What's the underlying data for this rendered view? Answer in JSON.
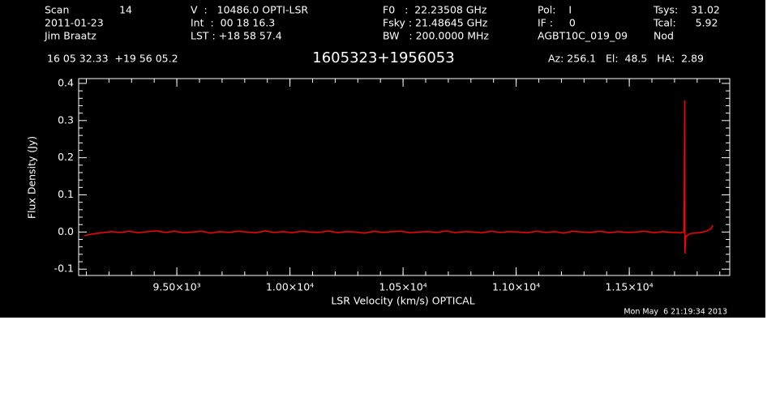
{
  "header": {
    "scan_label": "Scan",
    "scan": "14",
    "date": "2011-01-23",
    "observer": "Jim Braatz",
    "velocity": "V  :   10486.0 OPTI-LSR",
    "int": "Int  :  00 18 16.3",
    "lst": "LST : +18 58 57.4",
    "f0": "F0   :  22.23508 GHz",
    "fsky": "Fsky : 21.48645 GHz",
    "bw": "BW   : 200.0000 MHz",
    "pol": "Pol:    I",
    "if": "IF :     0",
    "project": "AGBT10C_019_09",
    "tsys": "Tsys:    31.02",
    "tcal": "Tcal:      5.92",
    "procedure": "Nod",
    "coordinates": "16 05 32.33  +19 56 05.2",
    "azel": "Az: 256.1   El:  48.5   HA:  2.89"
  },
  "footer": {
    "timestamp": "Mon May  6 21:19:34 2013"
  },
  "chart_data": {
    "type": "line",
    "title": "1605323+1956053",
    "x_label": "LSR Velocity (km/s) OPTICAL",
    "y_label": "Flux Density (Jy)",
    "xlim": [
      9066,
      11944
    ],
    "ylim": [
      -0.117,
      0.413
    ],
    "xticks": [
      {
        "value": 9500,
        "label": "9.50×10³"
      },
      {
        "value": 10000,
        "label": "1.00×10⁴"
      },
      {
        "value": 10500,
        "label": "1.05×10⁴"
      },
      {
        "value": 11000,
        "label": "1.10×10⁴"
      },
      {
        "value": 11500,
        "label": "1.15×10⁴"
      }
    ],
    "yticks": [
      -0.1,
      {
        "value": 0,
        "label": "0.0"
      },
      0.1,
      0.2,
      0.3,
      0.4
    ],
    "series": [
      {
        "color": "#ff0000",
        "x": [
          9090,
          9130,
          9170,
          9210,
          9250,
          9290,
          9330,
          9370,
          9410,
          9450,
          9490,
          9530,
          9570,
          9610,
          9650,
          9690,
          9730,
          9770,
          9810,
          9850,
          9890,
          9930,
          9970,
          10010,
          10050,
          10090,
          10130,
          10170,
          10210,
          10250,
          10290,
          10330,
          10370,
          10410,
          10450,
          10490,
          10530,
          10570,
          10610,
          10650,
          10690,
          10730,
          10770,
          10810,
          10850,
          10890,
          10930,
          10970,
          11010,
          11050,
          11090,
          11130,
          11170,
          11210,
          11250,
          11290,
          11330,
          11370,
          11410,
          11450,
          11490,
          11530,
          11570,
          11610,
          11650,
          11690,
          11730,
          11742,
          11745,
          11746,
          11750,
          11770,
          11810,
          11840,
          11860,
          11870
        ],
        "values": [
          -0.01,
          -0.005,
          -0.002,
          0.001,
          -0.001,
          0.002,
          -0.002,
          0.001,
          0.003,
          -0.001,
          0.002,
          -0.002,
          0.0,
          0.002,
          -0.003,
          0.001,
          -0.001,
          0.002,
          0.0,
          -0.002,
          0.003,
          -0.001,
          0.001,
          -0.002,
          0.002,
          0.0,
          -0.001,
          0.003,
          -0.002,
          0.001,
          0.0,
          -0.003,
          0.002,
          -0.001,
          0.001,
          0.002,
          -0.002,
          0.0,
          0.001,
          -0.001,
          0.003,
          -0.002,
          0.001,
          0.0,
          -0.002,
          0.002,
          -0.001,
          0.001,
          0.0,
          -0.002,
          0.002,
          -0.001,
          0.001,
          -0.003,
          0.002,
          0.0,
          -0.001,
          0.002,
          -0.002,
          0.001,
          -0.001,
          0.0,
          0.002,
          -0.002,
          0.001,
          -0.001,
          -0.002,
          0.0,
          0.355,
          -0.058,
          -0.012,
          -0.004,
          -0.002,
          0.002,
          0.008,
          0.018
        ]
      }
    ]
  }
}
